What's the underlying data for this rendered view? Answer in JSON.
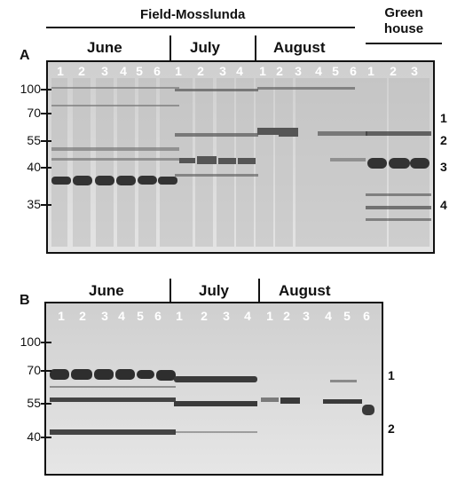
{
  "top_header": {
    "field_title": "Field-Mosslunda",
    "greenhouse_title": "Green\nhouse"
  },
  "panelA": {
    "letter": "A",
    "months": [
      "June",
      "July",
      "August"
    ],
    "lanes": {
      "june": [
        "1",
        "2",
        "3",
        "4",
        "5",
        "6"
      ],
      "july": [
        "1",
        "2",
        "3",
        "4"
      ],
      "august": [
        "1",
        "2",
        "3",
        "4",
        "5",
        "6"
      ],
      "greenhouse": [
        "1",
        "2",
        "3"
      ]
    },
    "mw_markers": [
      "100",
      "70",
      "55",
      "40",
      "35"
    ],
    "band_labels": [
      "1",
      "2",
      "3",
      "4"
    ]
  },
  "panelB": {
    "letter": "B",
    "months": [
      "June",
      "July",
      "August"
    ],
    "lanes": {
      "june": [
        "1",
        "2",
        "3",
        "4",
        "5",
        "6"
      ],
      "july": [
        "1",
        "2",
        "3",
        "4"
      ],
      "august": [
        "1",
        "2",
        "3",
        "4",
        "5",
        "6"
      ]
    },
    "mw_markers": [
      "100",
      "70",
      "55",
      "40"
    ],
    "band_labels": [
      "1",
      "2"
    ]
  },
  "colors": {
    "gel_background": "#dcdcdc",
    "gel_border": "#111111",
    "band_dark": "#2b2b2b"
  }
}
